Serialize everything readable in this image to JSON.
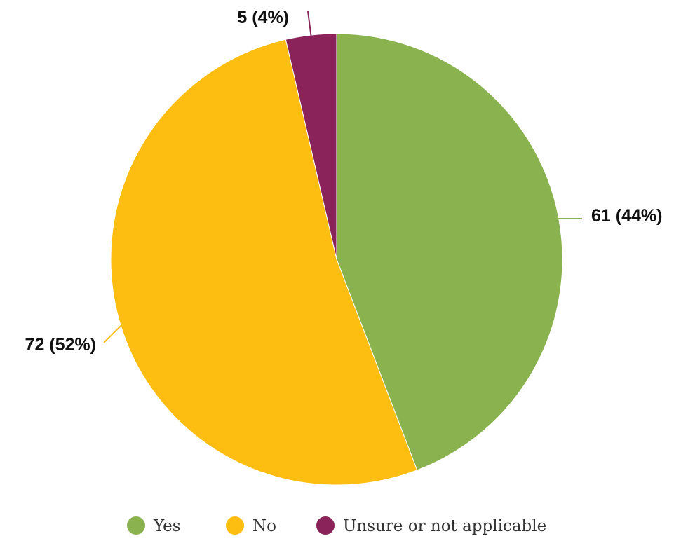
{
  "chart_data": {
    "type": "pie",
    "categories": [
      "Yes",
      "No",
      "Unsure or not applicable"
    ],
    "values": [
      61,
      72,
      5
    ],
    "labels": [
      "61 (44%)",
      "72 (52%)",
      "5 (4%)"
    ],
    "colors": [
      "#8ab34f",
      "#fdbd11",
      "#89235a"
    ],
    "start_angle": "12 o'clock",
    "direction": "clockwise",
    "legend": {
      "position": "bottom",
      "items": [
        "Yes",
        "No",
        "Unsure or not applicable"
      ]
    }
  }
}
